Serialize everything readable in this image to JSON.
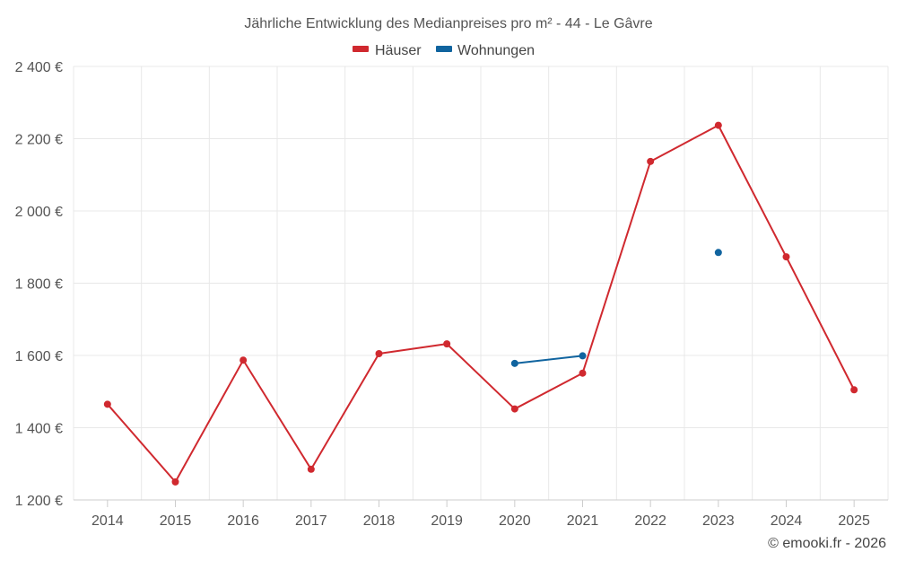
{
  "chart_data": {
    "type": "line",
    "title": "Jährliche Entwicklung des Medianpreises pro m² - 44 - Le Gâvre",
    "categories": [
      "2014",
      "2015",
      "2016",
      "2017",
      "2018",
      "2019",
      "2020",
      "2021",
      "2022",
      "2023",
      "2024",
      "2025"
    ],
    "series": [
      {
        "name": "Häuser",
        "color": "#d0292f",
        "values": [
          1465,
          1250,
          1587,
          1285,
          1605,
          1632,
          1452,
          1551,
          2137,
          2237,
          1873,
          1505
        ]
      },
      {
        "name": "Wohnungen",
        "color": "#10649f",
        "values": [
          null,
          null,
          null,
          null,
          null,
          null,
          1578,
          1599,
          null,
          1885,
          null,
          null
        ]
      }
    ],
    "ylim": [
      1200,
      2400
    ],
    "yticks": [
      1200,
      1400,
      1600,
      1800,
      2000,
      2200,
      2400
    ],
    "ytick_labels": [
      "1 200 €",
      "1 400 €",
      "1 600 €",
      "1 800 €",
      "2 000 €",
      "2 200 €",
      "2 400 €"
    ],
    "xlabel": "",
    "ylabel": "",
    "grid": true,
    "legend_position": "top-center",
    "credit": "© emooki.fr - 2026"
  }
}
